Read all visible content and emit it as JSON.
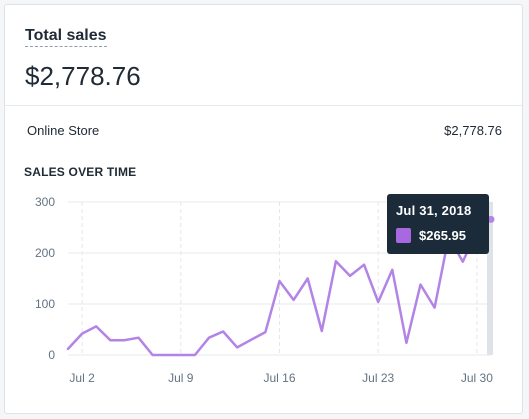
{
  "card": {
    "title": "Total sales",
    "total": "$2,778.76",
    "breakdown": [
      {
        "label": "Online Store",
        "value": "$2,778.76"
      }
    ],
    "section_title": "SALES OVER TIME"
  },
  "tooltip": {
    "date": "Jul 31, 2018",
    "value": "$265.95"
  },
  "colors": {
    "series": "#b284e5",
    "tooltip_bg": "#1c2b3a",
    "swatch": "#a869e0"
  },
  "chart_data": {
    "type": "line",
    "x": [
      "Jul 1",
      "Jul 2",
      "Jul 3",
      "Jul 4",
      "Jul 5",
      "Jul 6",
      "Jul 7",
      "Jul 8",
      "Jul 9",
      "Jul 10",
      "Jul 11",
      "Jul 12",
      "Jul 13",
      "Jul 14",
      "Jul 15",
      "Jul 16",
      "Jul 17",
      "Jul 18",
      "Jul 19",
      "Jul 20",
      "Jul 21",
      "Jul 22",
      "Jul 23",
      "Jul 24",
      "Jul 25",
      "Jul 26",
      "Jul 27",
      "Jul 28",
      "Jul 29",
      "Jul 30",
      "Jul 31"
    ],
    "series": [
      {
        "values": [
          12,
          42,
          56,
          29,
          29,
          34,
          0,
          0,
          0,
          0,
          34,
          46,
          15,
          30,
          45,
          145,
          108,
          150,
          47,
          184,
          155,
          177,
          104,
          167,
          24,
          138,
          93,
          232,
          183,
          243,
          265.95
        ]
      }
    ],
    "x_ticks": [
      "Jul 2",
      "Jul 9",
      "Jul 16",
      "Jul 23",
      "Jul 30"
    ],
    "y_ticks": [
      0,
      100,
      200,
      300
    ],
    "ylim": [
      0,
      300
    ],
    "grid": true
  }
}
